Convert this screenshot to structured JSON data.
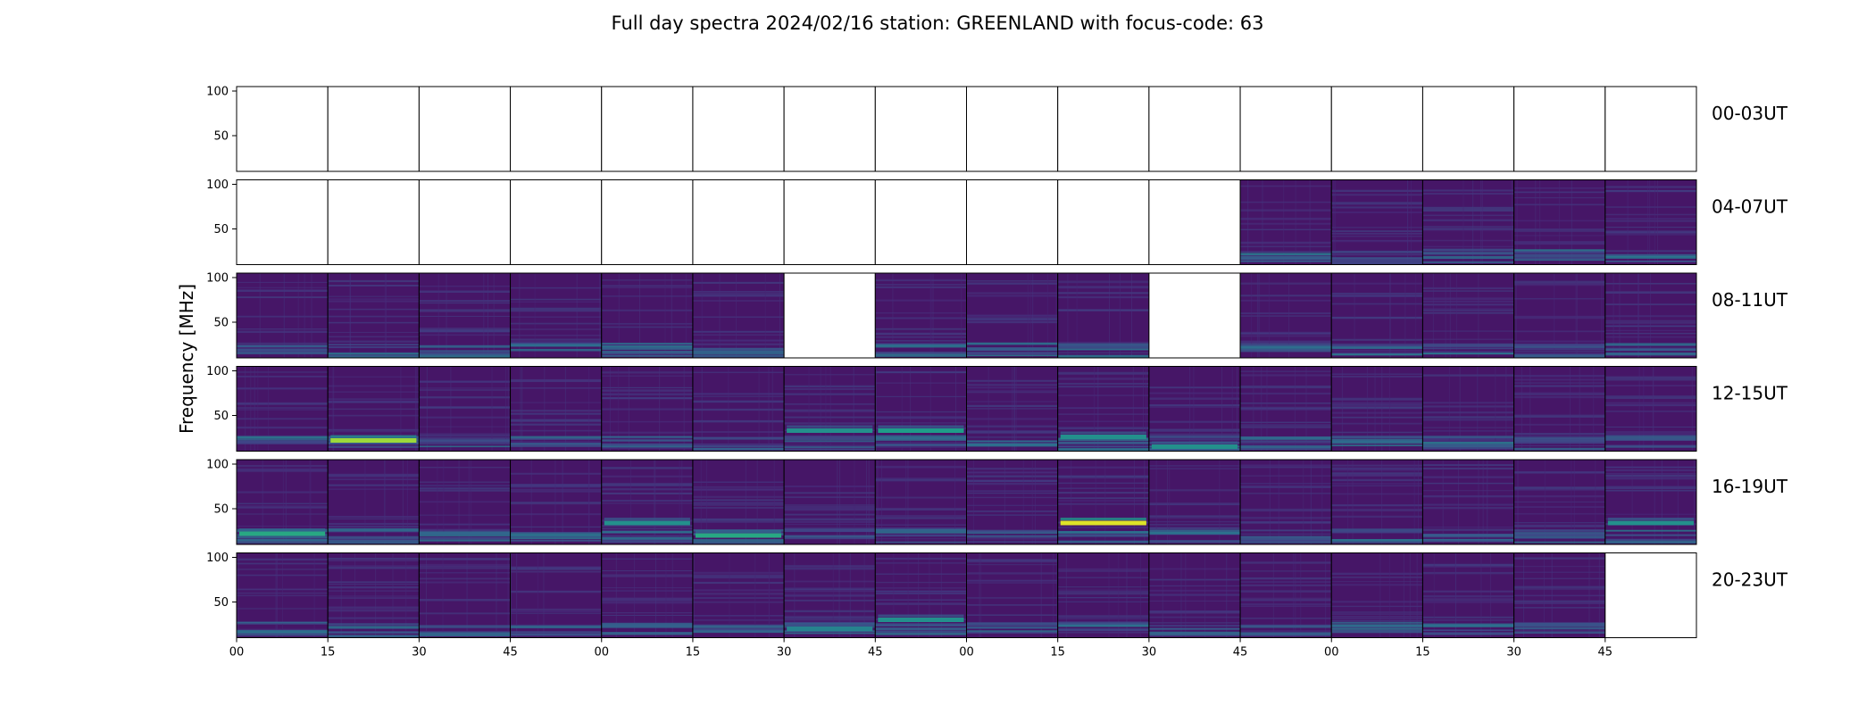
{
  "chart_data": {
    "type": "heatmap",
    "title": "Full day spectra 2024/02/16 station: GREENLAND with focus-code: 63",
    "ylabel": "Frequency [MHz]",
    "ylim": [
      10,
      105
    ],
    "yticks": [
      50,
      100
    ],
    "colormap": "viridis",
    "row_labels": [
      "00-03UT",
      "04-07UT",
      "08-11UT",
      "12-15UT",
      "16-19UT",
      "20-23UT"
    ],
    "xtick_labels": [
      "00",
      "15",
      "30",
      "45",
      "00",
      "15",
      "30",
      "45",
      "00",
      "15",
      "30",
      "45",
      "00",
      "15",
      "30",
      "45"
    ],
    "panels_per_row": 16,
    "panel_minutes": 15,
    "data_present": [
      [
        0,
        0,
        0,
        0,
        0,
        0,
        0,
        0,
        0,
        0,
        0,
        0,
        0,
        0,
        0,
        0
      ],
      [
        0,
        0,
        0,
        0,
        0,
        0,
        0,
        0,
        0,
        0,
        0,
        1,
        1,
        1,
        1,
        1
      ],
      [
        1,
        1,
        1,
        1,
        1,
        1,
        0,
        1,
        1,
        1,
        0,
        1,
        1,
        1,
        1,
        1
      ],
      [
        1,
        1,
        1,
        1,
        1,
        1,
        1,
        1,
        1,
        1,
        1,
        1,
        1,
        1,
        1,
        1
      ],
      [
        1,
        1,
        1,
        1,
        1,
        1,
        1,
        1,
        1,
        1,
        1,
        1,
        1,
        1,
        1,
        1
      ],
      [
        1,
        1,
        1,
        1,
        1,
        1,
        1,
        1,
        1,
        1,
        1,
        1,
        1,
        1,
        1,
        0
      ]
    ],
    "bright_bands": [
      {
        "row": 3,
        "panel": 1,
        "freq_mhz": 22,
        "level": 0.85
      },
      {
        "row": 3,
        "panel": 7,
        "freq_mhz": 33,
        "level": 0.55
      },
      {
        "row": 3,
        "panel": 6,
        "freq_mhz": 33,
        "level": 0.5
      },
      {
        "row": 3,
        "panel": 9,
        "freq_mhz": 26,
        "level": 0.5
      },
      {
        "row": 3,
        "panel": 10,
        "freq_mhz": 15,
        "level": 0.5
      },
      {
        "row": 4,
        "panel": 9,
        "freq_mhz": 34,
        "level": 0.95
      },
      {
        "row": 4,
        "panel": 0,
        "freq_mhz": 22,
        "level": 0.6
      },
      {
        "row": 4,
        "panel": 5,
        "freq_mhz": 20,
        "level": 0.6
      },
      {
        "row": 4,
        "panel": 4,
        "freq_mhz": 34,
        "level": 0.5
      },
      {
        "row": 4,
        "panel": 15,
        "freq_mhz": 34,
        "level": 0.5
      },
      {
        "row": 5,
        "panel": 7,
        "freq_mhz": 30,
        "level": 0.5
      },
      {
        "row": 5,
        "panel": 6,
        "freq_mhz": 20,
        "level": 0.45
      }
    ]
  }
}
